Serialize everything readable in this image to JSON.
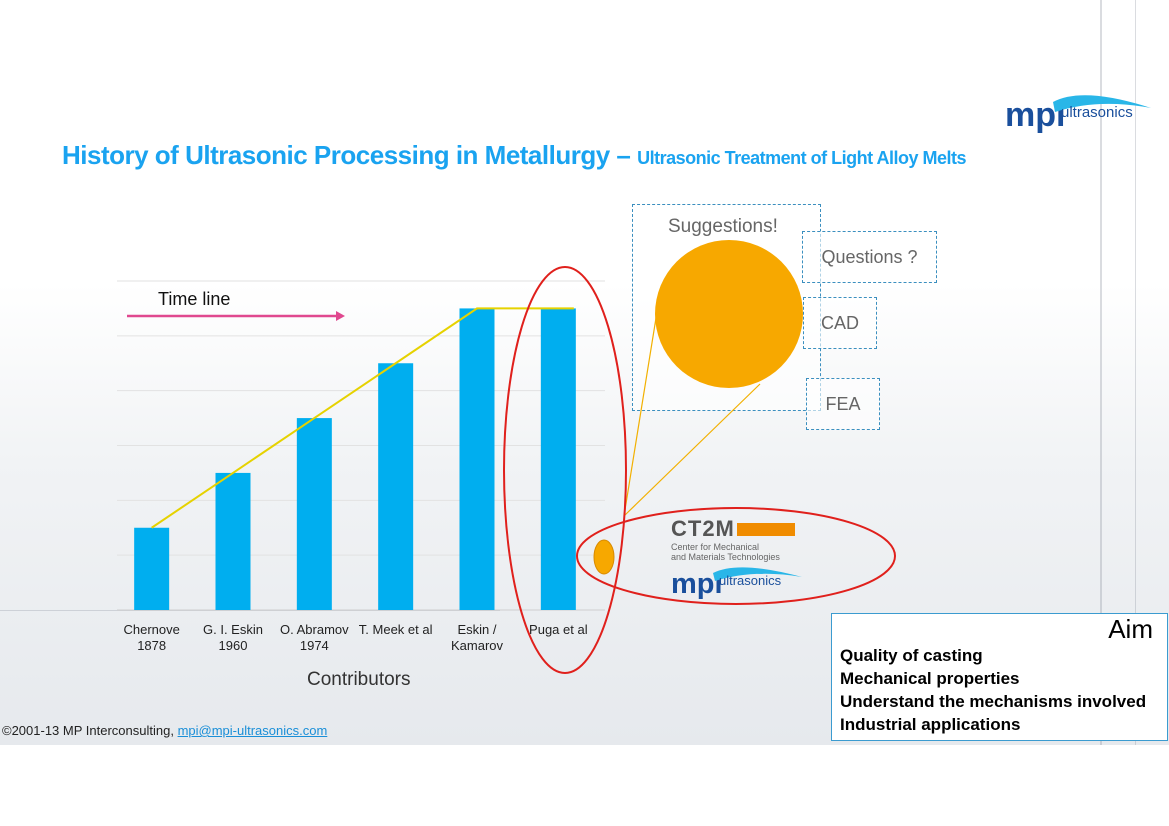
{
  "slide": {
    "title_main": "History of Ultrasonic Processing in Metallurgy –",
    "title_sub": "Ultrasonic Treatment of Light Alloy Melts",
    "logo_text": "mpi",
    "logo_suffix": "ultrasonics"
  },
  "chart_data": {
    "type": "bar",
    "categories": [
      [
        "Chernove",
        "1878"
      ],
      [
        "G. I. Eskin",
        "1960"
      ],
      [
        "O. Abramov",
        "1974"
      ],
      [
        "T. Meek et al",
        ""
      ],
      [
        "Eskin /",
        "Kamarov"
      ],
      [
        "Puga et al",
        ""
      ]
    ],
    "values": [
      1.5,
      2.5,
      3.5,
      4.5,
      5.5,
      5.5
    ],
    "ylim": [
      0,
      6
    ],
    "grid": true,
    "bar_color": "#00aeef",
    "trend_color": "#e6d200",
    "xlabel": "Contributors",
    "ylabel": "",
    "annotation": "Time line",
    "arrow_color": "#e0488f"
  },
  "callouts": {
    "suggestions": "Suggestions!",
    "questions": "Questions ?",
    "cad": "CAD",
    "fea": "FEA",
    "circle_color": "#f7a800",
    "highlight_color": "#e0201c"
  },
  "partners": {
    "ct2m_name": "CT2M",
    "ct2m_sub1": "Center for Mechanical",
    "ct2m_sub2": "and Materials Technologies",
    "mpi_text": "mpi",
    "mpi_suffix": "ultrasonics"
  },
  "aim": {
    "title": "Aim",
    "items": [
      "Quality of casting",
      "Mechanical properties",
      "Understand the mechanisms involved",
      "Industrial applications"
    ]
  },
  "footer": {
    "copyright": "©2001-13 MP Interconsulting,",
    "email": "mpi@mpi-ultrasonics.com"
  }
}
